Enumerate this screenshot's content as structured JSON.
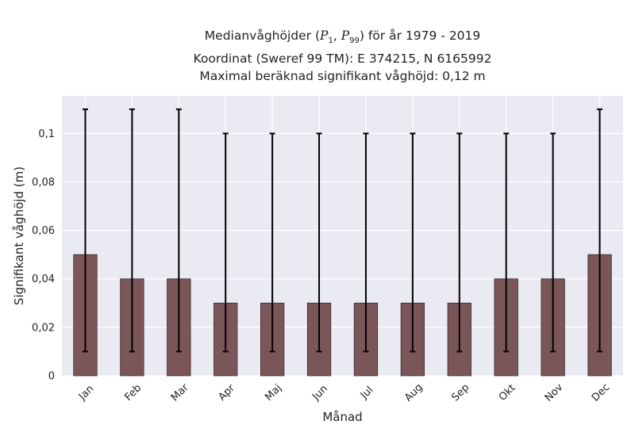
{
  "chart_data": {
    "type": "bar",
    "title_lines": [
      {
        "prefix": "Medianvåghöjder (",
        "p1": "P",
        "p1_sub": "1",
        "sep": ", ",
        "p2": "P",
        "p2_sub": "99",
        "suffix": ") för år 1979 - 2019"
      },
      "Koordinat (Sweref 99 TM): E 374215, N 6165992",
      "Maximal beräknad signifikant våghöjd: 0,12 m"
    ],
    "xlabel": "Månad",
    "ylabel": "Signifikant våghöjd (m)",
    "categories": [
      "Jan",
      "Feb",
      "Mar",
      "Apr",
      "Maj",
      "Jun",
      "Jul",
      "Aug",
      "Sep",
      "Okt",
      "Nov",
      "Dec"
    ],
    "values": [
      0.05,
      0.04,
      0.04,
      0.03,
      0.03,
      0.03,
      0.03,
      0.03,
      0.03,
      0.04,
      0.04,
      0.05
    ],
    "p1": [
      0.01,
      0.01,
      0.01,
      0.01,
      0.01,
      0.01,
      0.01,
      0.01,
      0.01,
      0.01,
      0.01,
      0.01
    ],
    "p99": [
      0.11,
      0.11,
      0.11,
      0.1,
      0.1,
      0.1,
      0.1,
      0.1,
      0.1,
      0.1,
      0.1,
      0.11
    ],
    "ylim": [
      0,
      0.1155
    ],
    "yticks": [
      0,
      0.02,
      0.04,
      0.06,
      0.08,
      0.1
    ],
    "ytick_labels": [
      "0",
      "0,02",
      "0,04",
      "0,06",
      "0,08",
      "0,1"
    ],
    "grid": true,
    "colors": {
      "bar": "#7b5658",
      "bar_edge": "#3a2a2b",
      "error": "#000000",
      "plot_bg": "#eaeaf2",
      "grid": "#ffffff"
    }
  }
}
